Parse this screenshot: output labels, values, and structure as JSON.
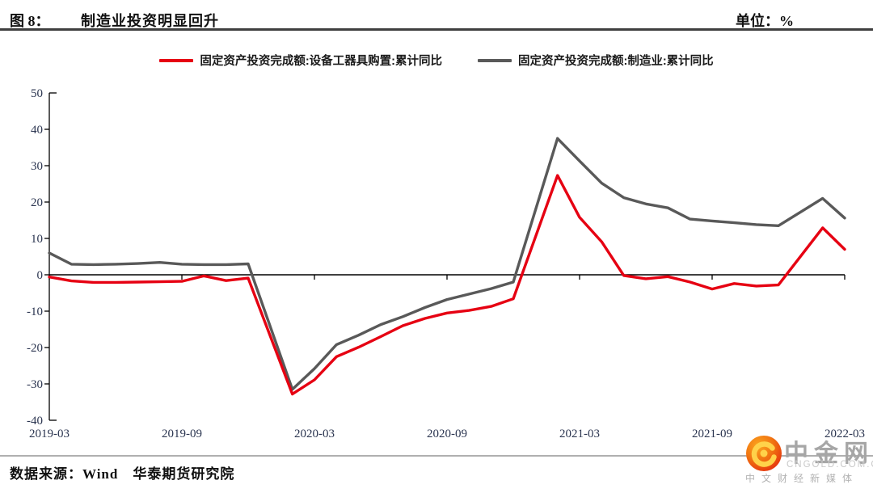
{
  "header": {
    "figure_label": "图 8：",
    "title": "制造业投资明显回升",
    "unit_label": "单位：%"
  },
  "footer": {
    "source": "数据来源：Wind　华泰期货研究院"
  },
  "logo": {
    "name": "中金网",
    "domain": "CNGOLD.COM.CN",
    "tagline": "中文财经新媒体",
    "ball_colors": [
      "#fca61e",
      "#f07011",
      "#e5310e"
    ],
    "swirl_color": "#ffd24a"
  },
  "chart_data": {
    "type": "line",
    "title": "制造业投资明显回升",
    "unit": "%",
    "ylim": [
      -40,
      50
    ],
    "ytick_interval": 10,
    "yticks": [
      50,
      40,
      30,
      20,
      10,
      0,
      -10,
      -20,
      -30,
      -40
    ],
    "x_tick_labels": [
      "2019-03",
      "2019-09",
      "2020-03",
      "2020-09",
      "2021-03",
      "2021-09",
      "2022-03"
    ],
    "zero_line": true,
    "grid": false,
    "legend_position": "top",
    "x": [
      "2019-03",
      "2019-04",
      "2019-05",
      "2019-06",
      "2019-07",
      "2019-08",
      "2019-09",
      "2019-10",
      "2019-11",
      "2019-12",
      "2020-02",
      "2020-03",
      "2020-04",
      "2020-05",
      "2020-06",
      "2020-07",
      "2020-08",
      "2020-09",
      "2020-10",
      "2020-11",
      "2020-12",
      "2021-02",
      "2021-03",
      "2021-04",
      "2021-05",
      "2021-06",
      "2021-07",
      "2021-08",
      "2021-09",
      "2021-10",
      "2021-11",
      "2021-12",
      "2022-02",
      "2022-03"
    ],
    "series": [
      {
        "name": "固定资产投资完成额:设备工器具购置:累计同比",
        "color": "#e60012",
        "values": [
          -0.6,
          -1.7,
          -2.1,
          -2.1,
          -2.0,
          -1.9,
          -1.8,
          -0.3,
          -1.6,
          -0.9,
          -32.8,
          -28.9,
          -22.5,
          -19.9,
          -17.0,
          -14.0,
          -12.0,
          -10.5,
          -9.8,
          -8.7,
          -6.6,
          27.3,
          15.8,
          9.1,
          -0.2,
          -1.1,
          -0.5,
          -2.0,
          -3.9,
          -2.4,
          -3.1,
          -2.8,
          12.9,
          7.0
        ]
      },
      {
        "name": "固定资产投资完成额:制造业:累计同比",
        "color": "#595959",
        "values": [
          6.0,
          2.9,
          2.8,
          2.9,
          3.1,
          3.4,
          2.9,
          2.8,
          2.8,
          3.0,
          -31.5,
          -25.8,
          -19.2,
          -16.6,
          -13.7,
          -11.5,
          -9.0,
          -6.8,
          -5.3,
          -3.8,
          -2.0,
          37.5,
          31.3,
          25.2,
          21.2,
          19.5,
          18.4,
          15.3,
          14.8,
          14.3,
          13.8,
          13.5,
          21.0,
          15.6
        ]
      }
    ]
  }
}
